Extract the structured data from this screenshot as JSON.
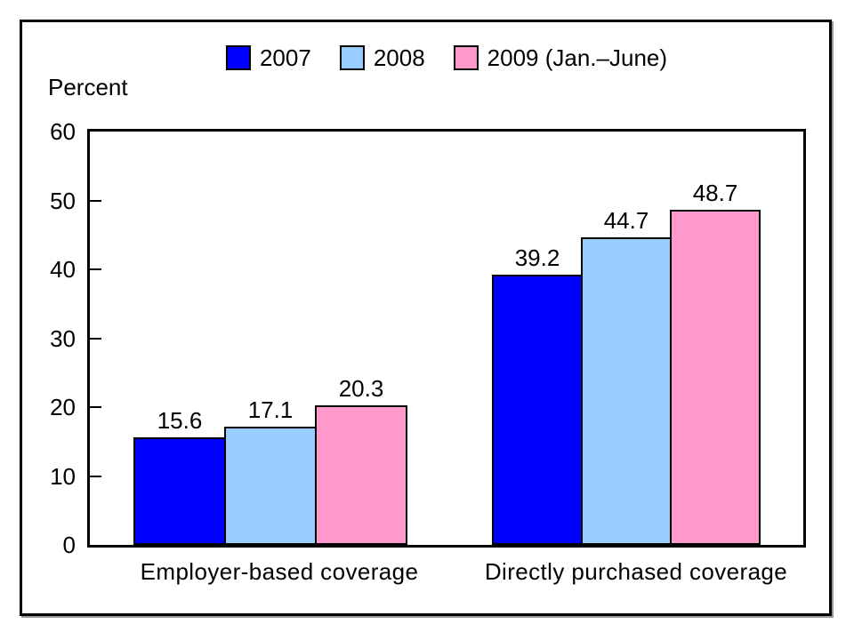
{
  "chart_data": {
    "type": "bar",
    "title": "",
    "ylabel": "Percent",
    "xlabel": "",
    "ylim": [
      0,
      60
    ],
    "yticks": [
      0,
      10,
      20,
      30,
      40,
      50,
      60
    ],
    "grid": false,
    "legend_position": "top",
    "value_labels": true,
    "categories": [
      "Employer-based coverage",
      "Directly purchased coverage"
    ],
    "series": [
      {
        "name": "2007",
        "color": "#0000ff",
        "values": [
          15.6,
          39.2
        ]
      },
      {
        "name": "2008",
        "color": "#99ccff",
        "values": [
          17.1,
          44.7
        ]
      },
      {
        "name": "2009 (Jan.–June)",
        "color": "#ff99cc",
        "values": [
          20.3,
          48.7
        ]
      }
    ]
  }
}
